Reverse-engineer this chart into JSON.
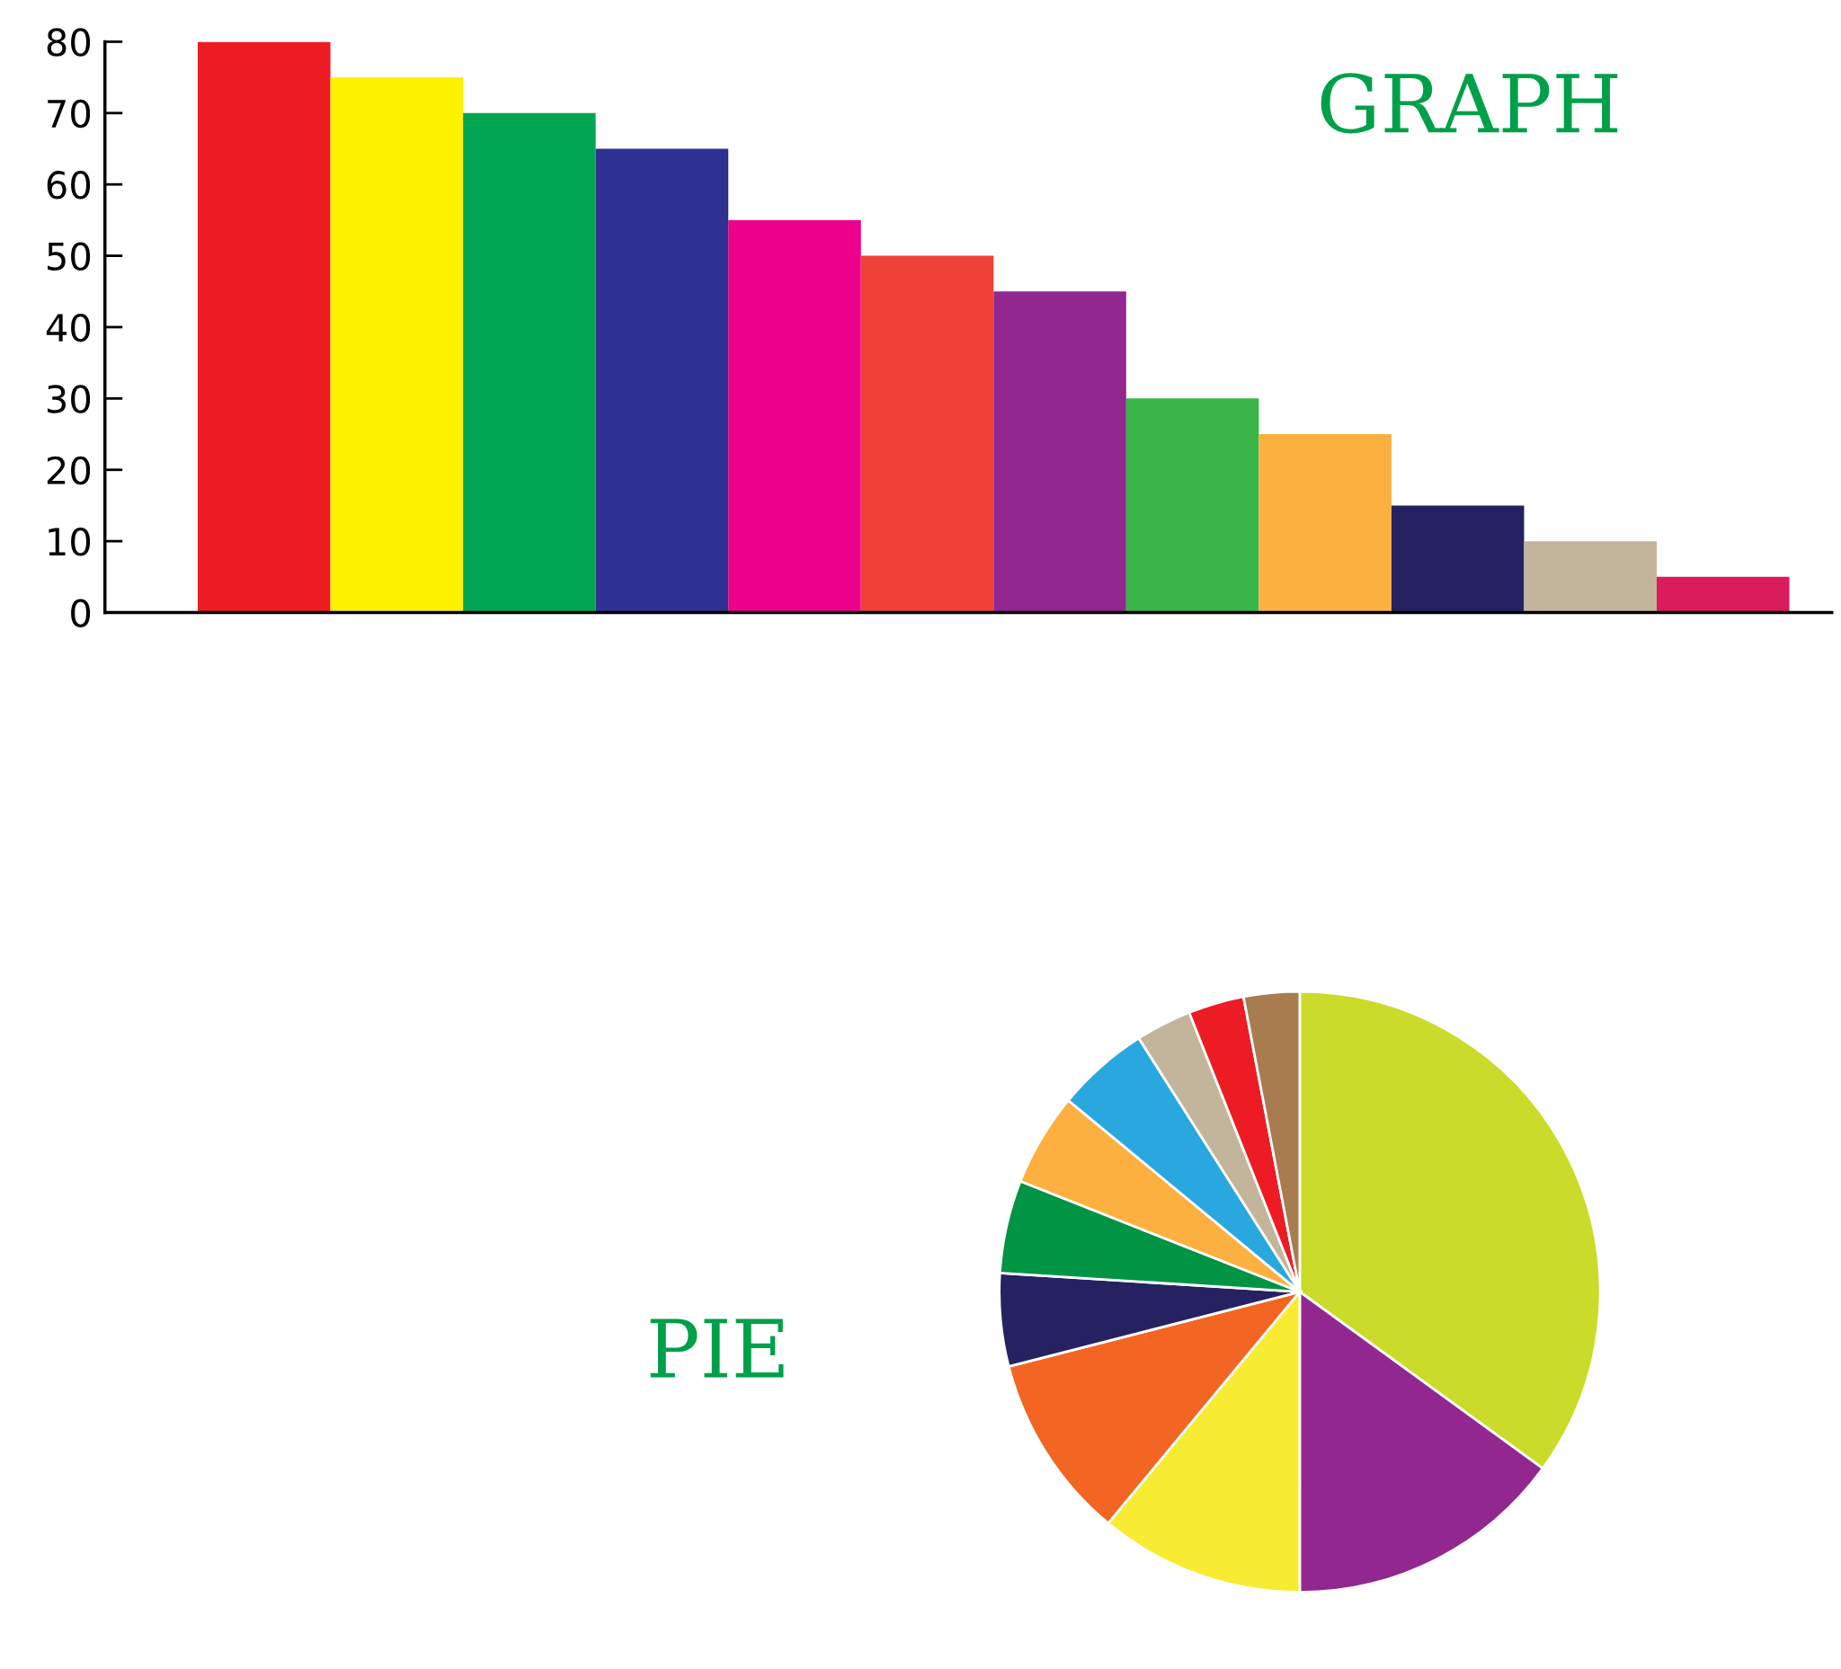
{
  "chart_data": [
    {
      "type": "bar",
      "title": "GRAPH",
      "categories": [
        null,
        null,
        null,
        null,
        null,
        null,
        null,
        null,
        null,
        null,
        null,
        null
      ],
      "values": [
        80,
        75,
        70,
        65,
        55,
        50,
        45,
        30,
        25,
        15,
        10,
        5
      ],
      "colors": [
        "#ed1c24",
        "#fff200",
        "#00a651",
        "#2e3192",
        "#ec008c",
        "#ef4136",
        "#92278f",
        "#39b54a",
        "#fbb040",
        "#262262",
        "#c2b59b",
        "#da1c5c"
      ],
      "ylim": [
        0,
        80
      ],
      "yticks": [
        0,
        10,
        20,
        30,
        40,
        50,
        60,
        70,
        80
      ]
    },
    {
      "type": "pie",
      "title": "PIE",
      "categories": [
        null,
        null,
        null,
        null,
        null,
        null,
        null,
        null,
        null,
        null,
        null
      ],
      "values": [
        35,
        15,
        11,
        10,
        5,
        5,
        5,
        5,
        3,
        3,
        3
      ],
      "colors": [
        "#cbdb2a",
        "#92278f",
        "#f7ec31",
        "#f26522",
        "#262262",
        "#009444",
        "#fbb040",
        "#29a8e0",
        "#c2b59b",
        "#ed1c24",
        "#a97c50"
      ]
    }
  ]
}
